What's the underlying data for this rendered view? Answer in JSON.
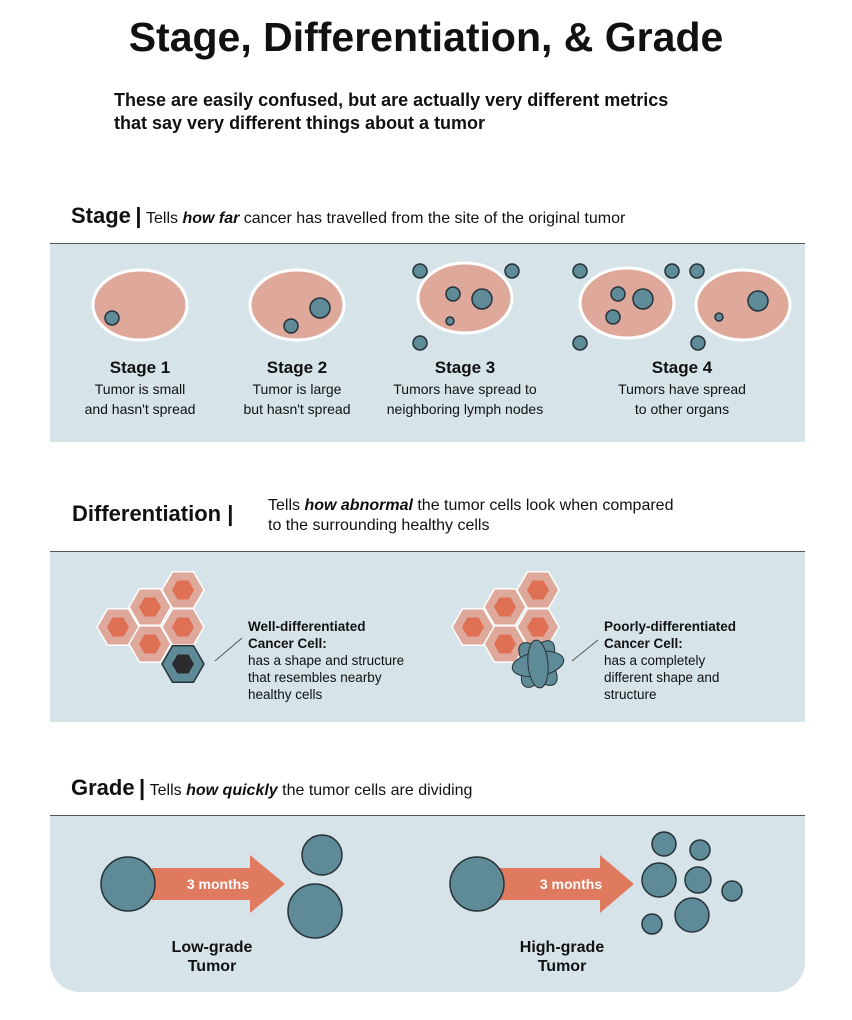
{
  "title": "Stage, Differentiation, & Grade",
  "subtitle_lines": [
    "These are easily confused, but are actually very different metrics",
    "that say very different things about a tumor"
  ],
  "colors": {
    "panel": "#d6e4ea",
    "tissue": "#dea99b",
    "tumor": "#5f8a97",
    "arrow": "#e07a5f",
    "cell_nucleus": "#e07054"
  },
  "stage": {
    "heading": "Stage",
    "separator": "|",
    "desc_pre": "Tells ",
    "desc_em": "how far",
    "desc_post": " cancer has travelled from the site of the original tumor",
    "items": [
      {
        "label": "Stage 1",
        "line1": "Tumor is small",
        "line2": "and hasn't spread"
      },
      {
        "label": "Stage 2",
        "line1": "Tumor is large",
        "line2": "but hasn't spread"
      },
      {
        "label": "Stage 3",
        "line1": "Tumors have spread to",
        "line2": "neighboring lymph nodes"
      },
      {
        "label": "Stage 4",
        "line1": "Tumors have spread",
        "line2": "to other organs"
      }
    ]
  },
  "differentiation": {
    "heading": "Differentiation",
    "separator": "|",
    "desc_pre": "Tells ",
    "desc_em": "how abnormal",
    "desc_post": " the tumor cells look when compared",
    "desc_line2": "to the surrounding healthy cells",
    "well": {
      "title1": "Well-differentiated",
      "title2": "Cancer Cell:",
      "lines": [
        "has a shape and structure",
        "that resembles nearby",
        "healthy cells"
      ]
    },
    "poor": {
      "title1": "Poorly-differentiated",
      "title2": "Cancer Cell:",
      "lines": [
        "has a completely",
        "different shape and",
        "structure"
      ]
    }
  },
  "grade": {
    "heading": "Grade",
    "separator": "|",
    "desc_pre": "Tells ",
    "desc_em": "how quickly",
    "desc_post": " the tumor cells are dividing",
    "low": {
      "arrow_label": "3 months",
      "line1": "Low-grade",
      "line2": "Tumor"
    },
    "high": {
      "arrow_label": "3 months",
      "line1": "High-grade",
      "line2": "Tumor"
    }
  }
}
